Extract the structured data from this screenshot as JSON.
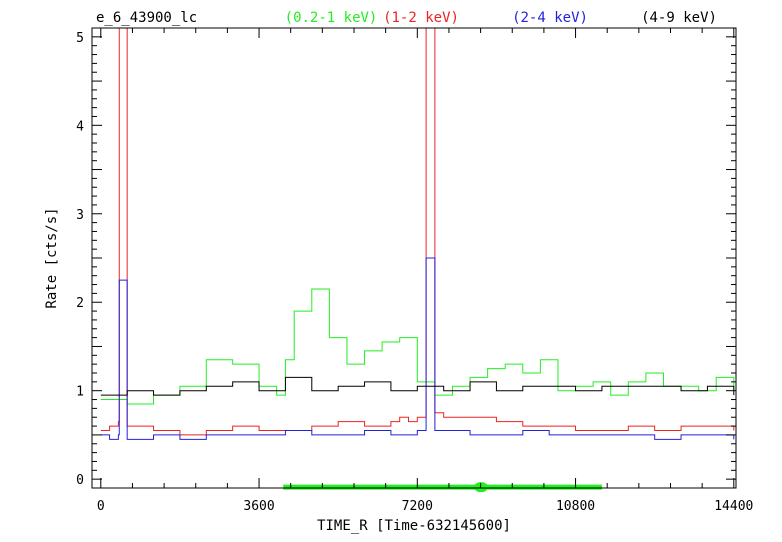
{
  "chart_data": {
    "type": "line",
    "title": "e_6_43900_lc",
    "xlabel": "TIME_R [Time-632145600]",
    "ylabel": "Rate [cts/s]",
    "xlim": [
      -200,
      14450
    ],
    "ylim": [
      -0.1,
      5.1
    ],
    "x_ticks": [
      "0",
      "3600",
      "7200",
      "10800",
      "14400"
    ],
    "y_ticks": [
      "0",
      "1",
      "2",
      "3",
      "4",
      "5"
    ],
    "x_tick_values": [
      0,
      3600,
      7200,
      10800,
      14400
    ],
    "y_tick_values": [
      0,
      1,
      2,
      3,
      4,
      5
    ],
    "series": [
      {
        "name": "(0.2-1 keV)",
        "color": "#22ee22",
        "x": [
          0,
          600,
          1200,
          1800,
          2400,
          3000,
          3600,
          4000,
          4200,
          4400,
          4800,
          5200,
          5600,
          6000,
          6400,
          6800,
          7200,
          7600,
          8000,
          8400,
          8800,
          9200,
          9600,
          10000,
          10400,
          10800,
          11200,
          11600,
          12000,
          12400,
          12800,
          13200,
          13600,
          14000,
          14400
        ],
        "values": [
          0.9,
          0.85,
          0.95,
          1.05,
          1.35,
          1.3,
          1.05,
          0.95,
          1.35,
          1.9,
          2.15,
          1.6,
          1.3,
          1.45,
          1.55,
          1.6,
          1.1,
          0.95,
          1.05,
          1.15,
          1.25,
          1.3,
          1.2,
          1.35,
          1.0,
          1.05,
          1.1,
          0.95,
          1.1,
          1.2,
          1.05,
          1.05,
          1.0,
          1.15,
          1.0
        ]
      },
      {
        "name": "(1-2 keV)",
        "color": "#ee2222",
        "x": [
          0,
          200,
          400,
          420,
          600,
          1200,
          1800,
          2400,
          3000,
          3600,
          4200,
          4800,
          5400,
          6000,
          6600,
          6800,
          7000,
          7200,
          7400,
          7600,
          7800,
          8400,
          9000,
          9600,
          10200,
          10800,
          11400,
          12000,
          12600,
          13200,
          13800,
          14400
        ],
        "values": [
          0.55,
          0.6,
          0.65,
          5.1,
          0.6,
          0.55,
          0.5,
          0.55,
          0.6,
          0.55,
          0.55,
          0.6,
          0.65,
          0.6,
          0.65,
          0.7,
          0.65,
          0.7,
          5.1,
          0.75,
          0.7,
          0.7,
          0.65,
          0.6,
          0.6,
          0.55,
          0.55,
          0.6,
          0.55,
          0.6,
          0.6,
          0.55
        ]
      },
      {
        "name": "(2-4 keV)",
        "color": "#2222dd",
        "x": [
          0,
          200,
          400,
          420,
          600,
          1200,
          1800,
          2400,
          3000,
          3600,
          4200,
          4800,
          5400,
          6000,
          6600,
          7200,
          7400,
          7600,
          8400,
          9000,
          9600,
          10200,
          10800,
          11400,
          12000,
          12600,
          13200,
          13800,
          14400
        ],
        "values": [
          0.5,
          0.45,
          0.5,
          2.25,
          0.45,
          0.5,
          0.45,
          0.5,
          0.5,
          0.5,
          0.55,
          0.5,
          0.5,
          0.55,
          0.5,
          0.55,
          2.5,
          0.55,
          0.5,
          0.5,
          0.55,
          0.5,
          0.5,
          0.5,
          0.5,
          0.45,
          0.5,
          0.5,
          0.45
        ]
      },
      {
        "name": "(4-9 keV)",
        "color": "#000000",
        "x": [
          0,
          600,
          1200,
          1800,
          2400,
          3000,
          3600,
          4200,
          4800,
          5400,
          6000,
          6600,
          7200,
          7800,
          8400,
          9000,
          9600,
          10200,
          10800,
          11400,
          12000,
          12600,
          13200,
          13800,
          14400
        ],
        "values": [
          0.95,
          1.0,
          0.95,
          1.0,
          1.05,
          1.1,
          1.0,
          1.15,
          1.0,
          1.05,
          1.1,
          1.0,
          1.05,
          1.0,
          1.1,
          1.0,
          1.05,
          1.05,
          1.0,
          1.05,
          1.05,
          1.05,
          1.0,
          1.05,
          0.95
        ]
      }
    ],
    "gti_bar": {
      "color": "#22ee22",
      "x_start": 4150,
      "x_end": 11400,
      "marker_x": 8650
    }
  }
}
